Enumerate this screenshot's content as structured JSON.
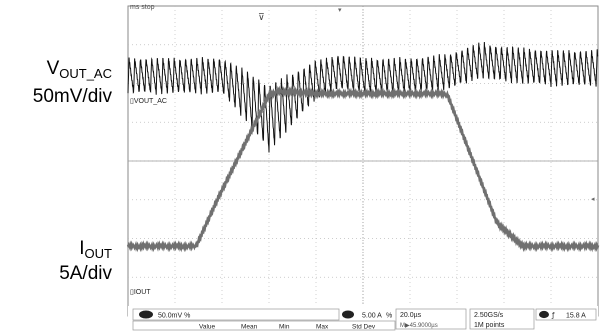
{
  "labels": {
    "vout_main": "V",
    "vout_sub": "OUT_AC",
    "vout_scale": "50mV/div",
    "iout_main": "I",
    "iout_sub": "OUT",
    "iout_scale": "5A/div"
  },
  "screen": {
    "top_left_text": "ms stop",
    "trace1_marker": "VOUT_AC",
    "trace2_marker": "IOUT",
    "colors": {
      "vout_trace": "#111111",
      "iout_trace": "#707070",
      "grid": "#bdbdbd",
      "frame": "#8a8a8a"
    }
  },
  "status_bar": {
    "ch1_scale": "50.0mV",
    "ch1_suffix": "%",
    "ch2_scale": "5.00 A",
    "ch2_suffix": "%",
    "timebase": "20.0µs",
    "position": "M▶45.9000µs",
    "sample_rate": "2.50GS/s",
    "record_length": "1M points",
    "trigger_level": "15.8 A",
    "measure_headers": [
      "Value",
      "Mean",
      "Min",
      "Max",
      "Std Dev"
    ]
  },
  "chart_data": {
    "type": "line",
    "title": "",
    "xlabel": "",
    "ylabel": "",
    "x_divisions": 10,
    "y_divisions": 8,
    "grid": true,
    "series": [
      {
        "name": "VOUT_AC",
        "units": "mV",
        "scale_per_div": 50,
        "baseline_div": 2.2,
        "envelope_x_div": [
          0,
          1,
          2,
          2.5,
          3,
          3.5,
          4,
          4.5,
          5,
          6,
          6.8,
          7.5,
          8,
          9,
          10
        ],
        "envelope_y_mV": [
          0,
          0,
          0,
          -25,
          -55,
          -30,
          -5,
          5,
          0,
          0,
          5,
          20,
          15,
          10,
          10
        ],
        "ripple_mV_pk_pk": 45
      },
      {
        "name": "IOUT",
        "units": "A",
        "scale_per_div": 5,
        "baseline_div": -2.2,
        "x_div": [
          0,
          1.45,
          1.9,
          3.0,
          3.2,
          4.0,
          5.0,
          6.0,
          6.6,
          6.8,
          7.85,
          8.4,
          10
        ],
        "y_A": [
          0,
          0,
          6,
          19.5,
          20,
          19.7,
          19.7,
          19.7,
          19.7,
          19.5,
          3,
          0,
          0
        ]
      }
    ]
  }
}
